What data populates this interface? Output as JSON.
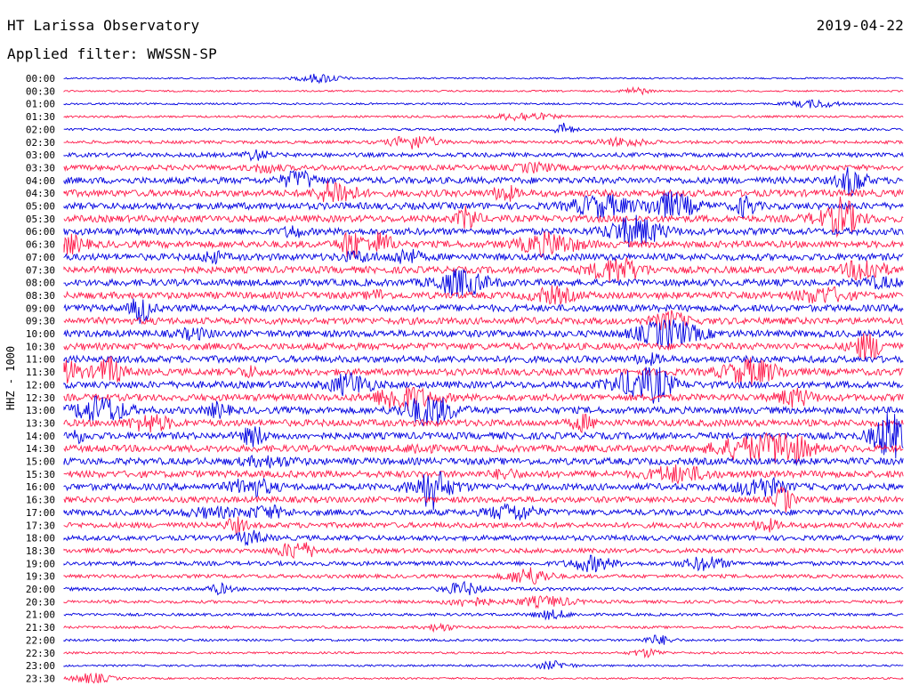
{
  "header": {
    "station": "HT Larissa Observatory",
    "date": "2019-04-22",
    "filter": "Applied filter: WWSSN-SP"
  },
  "chart_data": {
    "type": "helicorder",
    "ylabel": "HHZ - 1000",
    "row_labels": [
      "00:00",
      "00:30",
      "01:00",
      "01:30",
      "02:00",
      "02:30",
      "03:00",
      "03:30",
      "04:00",
      "04:30",
      "05:00",
      "05:30",
      "06:00",
      "06:30",
      "07:00",
      "07:30",
      "08:00",
      "08:30",
      "09:00",
      "09:30",
      "10:00",
      "10:30",
      "11:00",
      "11:30",
      "12:00",
      "12:30",
      "13:00",
      "13:30",
      "14:00",
      "14:30",
      "15:00",
      "15:30",
      "16:00",
      "16:30",
      "17:00",
      "17:30",
      "18:00",
      "18:30",
      "19:00",
      "19:30",
      "20:00",
      "20:30",
      "21:00",
      "21:30",
      "22:00",
      "22:30",
      "23:00",
      "23:30"
    ],
    "series_colors": [
      "#0000e0",
      "#ff1a4a"
    ],
    "relative_noise": [
      0.08,
      0.1,
      0.14,
      0.18,
      0.22,
      0.35,
      0.55,
      0.75,
      0.95,
      1.0,
      1.0,
      1.0,
      1.0,
      1.0,
      1.0,
      1.0,
      1.0,
      1.0,
      1.0,
      1.0,
      1.0,
      1.0,
      1.0,
      1.0,
      1.0,
      1.0,
      1.0,
      1.0,
      1.0,
      1.0,
      1.0,
      1.0,
      1.0,
      0.85,
      0.85,
      0.75,
      0.7,
      0.6,
      0.55,
      0.45,
      0.4,
      0.35,
      0.3,
      0.25,
      0.22,
      0.18,
      0.15,
      0.12
    ]
  }
}
